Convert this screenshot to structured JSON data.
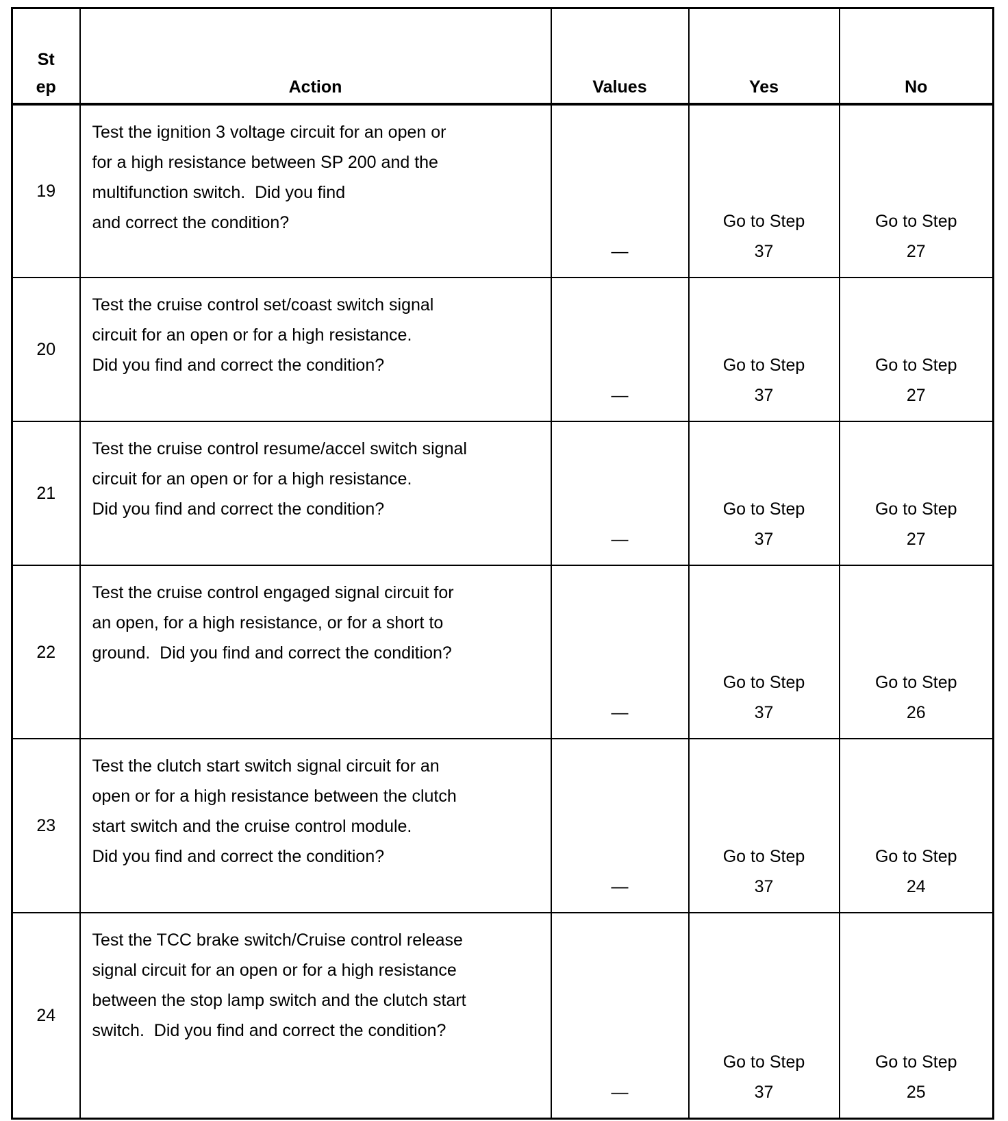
{
  "headers": {
    "step_line1": "St",
    "step_line2": "ep",
    "action": "Action",
    "values": "Values",
    "yes": "Yes",
    "no": "No"
  },
  "rows": [
    {
      "step": "19",
      "action": [
        "Test the ignition 3 voltage circuit for an open or",
        "for a high resistance between SP 200 and the",
        "multifunction switch.  Did you find",
        "and correct the condition?"
      ],
      "value": "—",
      "yes": [
        "Go to Step",
        "37"
      ],
      "no": [
        "Go to Step",
        "27"
      ]
    },
    {
      "step": "20",
      "action": [
        "Test the cruise control set/coast switch signal",
        "circuit for an open or for a high resistance.",
        "Did you find and correct the condition?"
      ],
      "value": "—",
      "yes": [
        "Go to Step",
        "37"
      ],
      "no": [
        "Go to Step",
        "27"
      ]
    },
    {
      "step": "21",
      "action": [
        "Test the cruise control resume/accel switch signal",
        "circuit for an open or for a high resistance.",
        "Did you find and correct the condition?"
      ],
      "value": "—",
      "yes": [
        "Go to Step",
        "37"
      ],
      "no": [
        "Go to Step",
        "27"
      ]
    },
    {
      "step": "22",
      "action": [
        "Test the cruise control engaged signal circuit for",
        "an open, for a high resistance, or for a short to",
        "ground.  Did you find and correct the condition?"
      ],
      "value": "—",
      "yes": [
        "Go to Step",
        "37"
      ],
      "no": [
        "Go to Step",
        "26"
      ]
    },
    {
      "step": "23",
      "action": [
        "Test the clutch start switch signal circuit for an",
        "open or for a high resistance between the clutch",
        "start switch and the cruise control module.",
        "Did you find and correct the condition?"
      ],
      "value": "—",
      "yes": [
        "Go to Step",
        "37"
      ],
      "no": [
        "Go to Step",
        "24"
      ]
    },
    {
      "step": "24",
      "action": [
        "Test the TCC brake switch/Cruise control release",
        "signal circuit for an open or for a high resistance",
        "between the stop lamp switch and the clutch start",
        "switch.  Did you find and correct the condition?"
      ],
      "value": "—",
      "yes": [
        "Go to Step",
        "37"
      ],
      "no": [
        "Go to Step",
        "25"
      ]
    }
  ]
}
